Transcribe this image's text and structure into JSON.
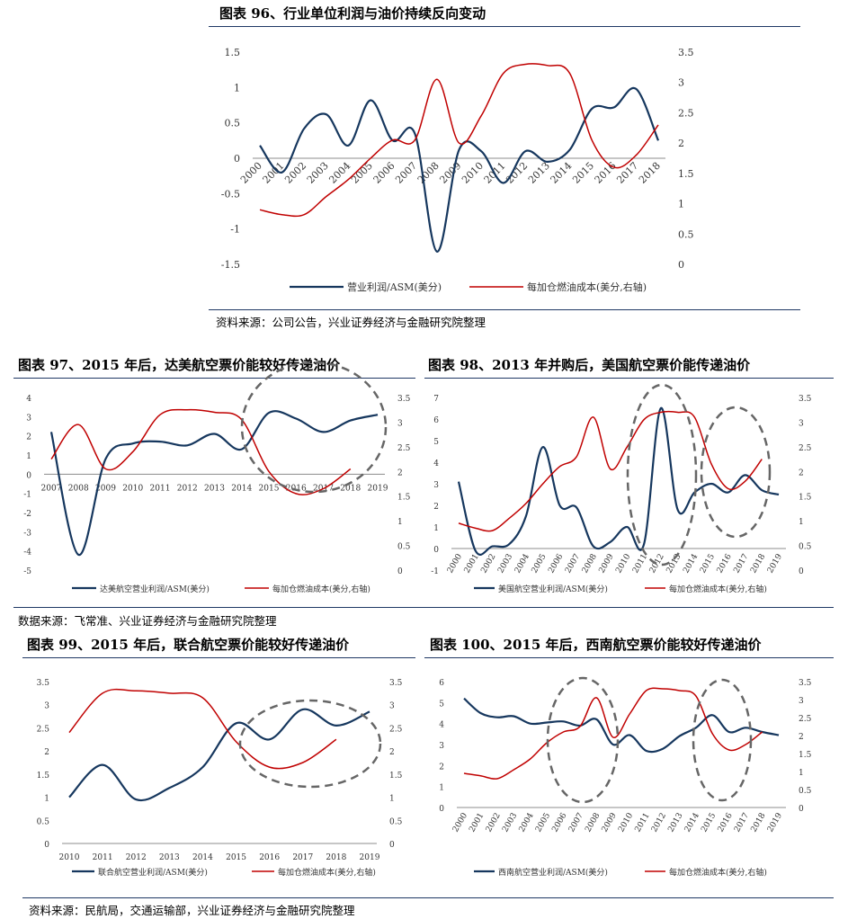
{
  "colors": {
    "series_profit": "#16375e",
    "series_fuel": "#c00000",
    "axis": "#8c8c8c",
    "circle": "#666666",
    "rule": "#1f3864"
  },
  "fig96": {
    "title": "图表 96、行业单位利润与油价持续反向变动",
    "source": "资料来源：公司公告，兴业证券经济与金融研究院整理"
  },
  "fig97": {
    "title": "图表 97、2015 年后，达美航空票价能较好传递油价"
  },
  "fig98": {
    "title": "图表 98、2013 年并购后，美国航空票价能传递油价"
  },
  "source_97_98": "数据来源：飞常准、兴业证券经济与金融研究院整理",
  "fig99": {
    "title": "图表 99、2015 年后，联合航空票价能较好传递油价"
  },
  "fig100": {
    "title": "图表 100、2015 年后，西南航空票价能较好传递油价"
  },
  "source_99_100": "资料来源：民航局，交通运输部，兴业证券经济与金融研究院整理",
  "chart_data": [
    {
      "id": "c96",
      "type": "line",
      "x": [
        "2000",
        "2001",
        "2002",
        "2003",
        "2004",
        "2005",
        "2006",
        "2007",
        "2008",
        "2009",
        "2010",
        "2011",
        "2012",
        "2013",
        "2014",
        "2015",
        "2016",
        "2017",
        "2018"
      ],
      "ylim": [
        -1.5,
        1.5
      ],
      "yticks": [
        "-1.5",
        "-1",
        "-0.5",
        "0",
        "0.5",
        "1",
        "1.5"
      ],
      "y2lim": [
        0,
        3.5
      ],
      "y2ticks": [
        "0",
        "0.5",
        "1",
        "1.5",
        "2",
        "2.5",
        "3",
        "3.5"
      ],
      "series": [
        {
          "name": "营业利润/ASM(美分)",
          "axis": "left",
          "values": [
            0.18,
            -0.2,
            0.42,
            0.62,
            0.18,
            0.82,
            0.25,
            0.35,
            -1.32,
            0.12,
            0.1,
            -0.35,
            0.1,
            -0.05,
            0.12,
            0.7,
            0.72,
            0.98,
            0.25
          ]
        },
        {
          "name": "每加仓燃油成本(美分,右轴)",
          "axis": "right",
          "values": [
            0.9,
            0.82,
            0.82,
            1.12,
            1.4,
            1.75,
            2.05,
            2.05,
            3.05,
            2.0,
            2.45,
            3.15,
            3.3,
            3.28,
            3.15,
            2.05,
            1.6,
            1.8,
            2.3
          ]
        }
      ]
    },
    {
      "id": "c97",
      "type": "line",
      "x": [
        "2007",
        "2008",
        "2009",
        "2010",
        "2011",
        "2012",
        "2013",
        "2014",
        "2015",
        "2016",
        "2017",
        "2018",
        "2019"
      ],
      "ylim": [
        -5,
        4
      ],
      "yticks": [
        "-5",
        "-4",
        "-3",
        "-2",
        "-1",
        "0",
        "1",
        "2",
        "3",
        "4"
      ],
      "y2lim": [
        0,
        3.5
      ],
      "y2ticks": [
        "0",
        "0.5",
        "1",
        "1.5",
        "2",
        "2.5",
        "3",
        "3.5"
      ],
      "series": [
        {
          "name": "达美航空营业利润/ASM(美分)",
          "axis": "left",
          "values": [
            2.2,
            -4.2,
            0.8,
            1.6,
            1.7,
            1.5,
            2.1,
            1.3,
            3.2,
            2.9,
            2.2,
            2.8,
            3.1
          ]
        },
        {
          "name": "每加仓燃油成本(美分,右轴)",
          "axis": "right",
          "values": [
            2.25,
            2.95,
            2.05,
            2.4,
            3.15,
            3.25,
            3.2,
            3.05,
            2.0,
            1.55,
            1.65,
            2.05,
            null
          ]
        }
      ]
    },
    {
      "id": "c98",
      "type": "line",
      "x": [
        "2000",
        "2001",
        "2002",
        "2003",
        "2004",
        "2005",
        "2006",
        "2007",
        "2008",
        "2009",
        "2010",
        "2011",
        "2012",
        "2013",
        "2014",
        "2015",
        "2016",
        "2017",
        "2018",
        "2019"
      ],
      "ylim": [
        -1,
        7
      ],
      "yticks": [
        "-1",
        "0",
        "1",
        "2",
        "3",
        "4",
        "5",
        "6",
        "7"
      ],
      "y2lim": [
        0,
        3.5
      ],
      "y2ticks": [
        "0",
        "0.5",
        "1",
        "1.5",
        "2",
        "2.5",
        "3",
        "3.5"
      ],
      "series": [
        {
          "name": "美国航空营业利润/ASM(美分)",
          "axis": "left",
          "values": [
            3.1,
            -0.1,
            0.1,
            0.2,
            1.5,
            4.7,
            2.0,
            1.9,
            0.1,
            0.3,
            1.0,
            0.2,
            6.5,
            1.8,
            2.6,
            3.0,
            2.6,
            3.4,
            2.7,
            2.5
          ]
        },
        {
          "name": "每加仓燃油成本(美分,右轴)",
          "axis": "right",
          "values": [
            0.95,
            0.85,
            0.8,
            1.05,
            1.35,
            1.75,
            2.1,
            2.3,
            3.1,
            2.05,
            2.5,
            3.05,
            3.2,
            3.2,
            3.1,
            2.15,
            1.65,
            1.8,
            2.25,
            null
          ]
        }
      ]
    },
    {
      "id": "c99",
      "type": "line",
      "x": [
        "2010",
        "2011",
        "2012",
        "2013",
        "2014",
        "2015",
        "2016",
        "2017",
        "2018",
        "2019"
      ],
      "ylim": [
        0,
        3.5
      ],
      "yticks": [
        "0",
        "0.5",
        "1",
        "1.5",
        "2",
        "2.5",
        "3",
        "3.5"
      ],
      "y2lim": [
        0,
        3.5
      ],
      "y2ticks": [
        "0",
        "0.5",
        "1",
        "1.5",
        "2",
        "2.5",
        "3",
        "3.5"
      ],
      "series": [
        {
          "name": "联合航空营业利润/ASM(美分)",
          "axis": "left",
          "values": [
            1.0,
            1.7,
            0.95,
            1.2,
            1.65,
            2.6,
            2.25,
            2.9,
            2.55,
            2.85
          ]
        },
        {
          "name": "每加仓燃油成本(美分,右轴)",
          "axis": "right",
          "values": [
            2.4,
            3.25,
            3.3,
            3.25,
            3.15,
            2.2,
            1.65,
            1.75,
            2.25,
            null
          ]
        }
      ]
    },
    {
      "id": "c100",
      "type": "line",
      "x": [
        "2000",
        "2001",
        "2002",
        "2003",
        "2004",
        "2005",
        "2006",
        "2007",
        "2008",
        "2009",
        "2010",
        "2011",
        "2012",
        "2013",
        "2014",
        "2015",
        "2016",
        "2017",
        "2018",
        "2019"
      ],
      "ylim": [
        0,
        6
      ],
      "yticks": [
        "0",
        "1",
        "2",
        "3",
        "4",
        "5",
        "6"
      ],
      "y2lim": [
        0,
        3.5
      ],
      "y2ticks": [
        "0",
        "0.5",
        "1",
        "1.5",
        "2",
        "2.5",
        "3",
        "3.5"
      ],
      "series": [
        {
          "name": "西南航空营业利润/ASM(美分)",
          "axis": "left",
          "values": [
            5.2,
            4.5,
            4.3,
            4.35,
            4.0,
            4.05,
            4.1,
            3.9,
            4.2,
            3.0,
            3.45,
            2.7,
            2.8,
            3.4,
            3.8,
            4.4,
            3.6,
            3.8,
            3.6,
            3.45
          ]
        },
        {
          "name": "每加仓燃油成本(美分,右轴)",
          "axis": "right",
          "values": [
            0.95,
            0.88,
            0.8,
            1.05,
            1.35,
            1.8,
            2.1,
            2.25,
            3.05,
            1.95,
            2.6,
            3.25,
            3.3,
            3.25,
            3.1,
            2.05,
            1.6,
            1.75,
            2.1,
            null
          ]
        }
      ]
    }
  ]
}
